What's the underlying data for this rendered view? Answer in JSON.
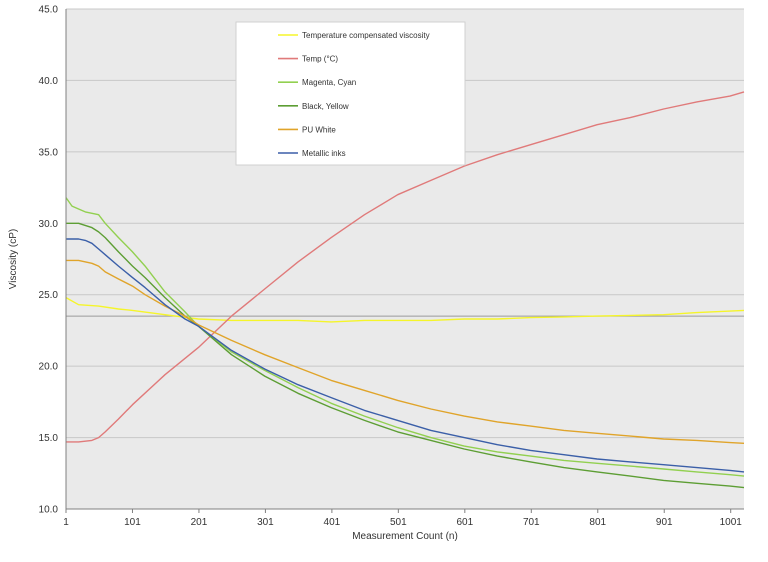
{
  "chart_data": {
    "type": "line",
    "title": "",
    "xlabel": "Measurement Count (n)",
    "ylabel": "Viscosity (cP)",
    "xlim": [
      1,
      1021
    ],
    "ylim": [
      10,
      45
    ],
    "x_ticks": [
      1,
      101,
      201,
      301,
      401,
      501,
      601,
      701,
      801,
      901,
      1001
    ],
    "x_tick_labels": [
      "1",
      "101",
      "201",
      "301",
      "401",
      "501",
      "601",
      "701",
      "801",
      "901",
      "1001"
    ],
    "y_ticks": [
      10,
      15,
      20,
      25,
      30,
      35,
      40,
      45
    ],
    "y_tick_labels": [
      "10.0",
      "15.0",
      "20.0",
      "25.0",
      "30.0",
      "35.0",
      "40.0",
      "45.0"
    ],
    "reference_line": 23.5,
    "grid": true,
    "background": "#eaeaea",
    "legend_position": "top-center",
    "series": [
      {
        "name": "Temperature compensated viscosity",
        "color": "#f5f52a",
        "x": [
          1,
          20,
          50,
          80,
          101,
          150,
          200,
          250,
          300,
          350,
          400,
          450,
          500,
          550,
          600,
          650,
          700,
          750,
          800,
          850,
          900,
          950,
          1000,
          1021
        ],
        "y": [
          24.8,
          24.3,
          24.2,
          24.0,
          23.9,
          23.6,
          23.3,
          23.2,
          23.2,
          23.2,
          23.1,
          23.2,
          23.2,
          23.2,
          23.3,
          23.3,
          23.4,
          23.45,
          23.5,
          23.55,
          23.6,
          23.75,
          23.85,
          23.9
        ]
      },
      {
        "name": "Temp (°C)",
        "color": "#e07a7a",
        "x": [
          1,
          20,
          40,
          50,
          60,
          80,
          101,
          150,
          200,
          250,
          300,
          350,
          400,
          450,
          500,
          550,
          600,
          650,
          700,
          750,
          800,
          850,
          900,
          950,
          1000,
          1021
        ],
        "y": [
          14.7,
          14.7,
          14.8,
          15.0,
          15.4,
          16.3,
          17.3,
          19.4,
          21.3,
          23.5,
          25.4,
          27.3,
          29.0,
          30.6,
          32.0,
          33.0,
          34.0,
          34.8,
          35.5,
          36.2,
          36.9,
          37.4,
          38.0,
          38.5,
          38.9,
          39.2
        ]
      },
      {
        "name": "Magenta, Cyan",
        "color": "#92d050",
        "x": [
          1,
          10,
          20,
          30,
          50,
          60,
          80,
          101,
          120,
          150,
          180,
          200,
          250,
          300,
          350,
          400,
          450,
          500,
          550,
          600,
          650,
          700,
          750,
          800,
          850,
          900,
          950,
          1000,
          1021
        ],
        "y": [
          31.8,
          31.2,
          31.0,
          30.8,
          30.6,
          30.0,
          29.0,
          28.0,
          27.0,
          25.2,
          23.8,
          22.8,
          21.0,
          19.7,
          18.5,
          17.4,
          16.5,
          15.7,
          15.0,
          14.4,
          14.0,
          13.7,
          13.4,
          13.2,
          13.0,
          12.8,
          12.6,
          12.4,
          12.3
        ]
      },
      {
        "name": "Black, Yellow",
        "color": "#5d9e34",
        "x": [
          1,
          20,
          40,
          50,
          60,
          80,
          101,
          120,
          150,
          180,
          200,
          250,
          300,
          350,
          400,
          450,
          500,
          550,
          600,
          650,
          700,
          750,
          800,
          850,
          900,
          950,
          1000,
          1021
        ],
        "y": [
          30.0,
          30.0,
          29.7,
          29.4,
          29.0,
          28.0,
          27.0,
          26.2,
          24.8,
          23.5,
          22.8,
          20.8,
          19.3,
          18.1,
          17.1,
          16.2,
          15.4,
          14.8,
          14.2,
          13.7,
          13.3,
          12.9,
          12.6,
          12.3,
          12.0,
          11.8,
          11.6,
          11.5
        ]
      },
      {
        "name": "PU White",
        "color": "#e0a42a",
        "x": [
          1,
          20,
          40,
          50,
          60,
          80,
          101,
          120,
          150,
          180,
          200,
          250,
          300,
          350,
          400,
          450,
          500,
          550,
          600,
          650,
          700,
          750,
          800,
          850,
          900,
          950,
          1000,
          1021
        ],
        "y": [
          27.4,
          27.4,
          27.2,
          27.0,
          26.6,
          26.1,
          25.6,
          25.0,
          24.2,
          23.5,
          22.9,
          21.8,
          20.8,
          19.9,
          19.0,
          18.3,
          17.6,
          17.0,
          16.5,
          16.1,
          15.8,
          15.5,
          15.3,
          15.1,
          14.9,
          14.8,
          14.65,
          14.6
        ]
      },
      {
        "name": "Metallic inks",
        "color": "#3b5fa8",
        "x": [
          1,
          20,
          30,
          40,
          50,
          60,
          80,
          101,
          120,
          150,
          180,
          200,
          250,
          300,
          350,
          400,
          450,
          500,
          550,
          600,
          650,
          700,
          750,
          800,
          850,
          900,
          950,
          1000,
          1021
        ],
        "y": [
          28.9,
          28.9,
          28.8,
          28.6,
          28.2,
          27.8,
          27.0,
          26.2,
          25.5,
          24.3,
          23.3,
          22.8,
          21.1,
          19.8,
          18.7,
          17.8,
          16.9,
          16.2,
          15.5,
          15.0,
          14.5,
          14.1,
          13.8,
          13.5,
          13.3,
          13.1,
          12.9,
          12.7,
          12.6
        ]
      }
    ]
  }
}
